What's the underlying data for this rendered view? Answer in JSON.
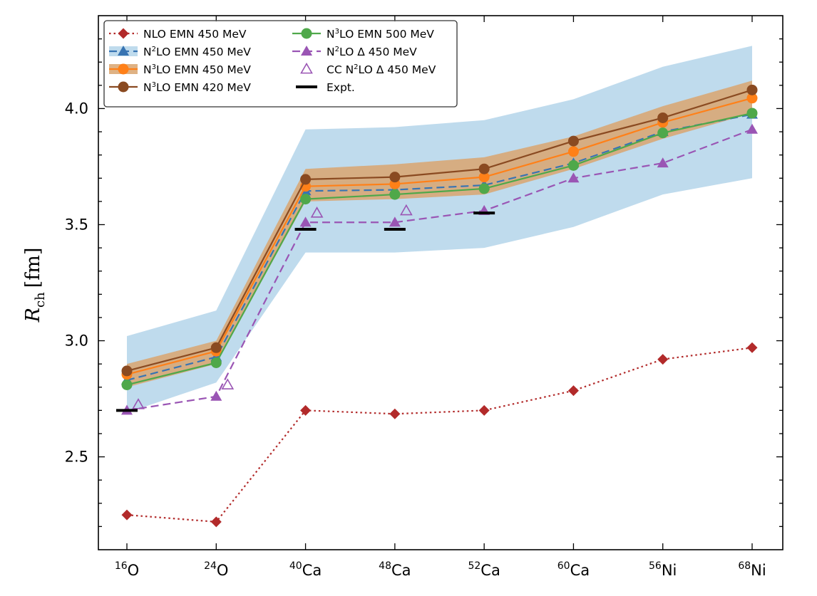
{
  "chart_data": {
    "type": "line",
    "title": "",
    "xlabel": "",
    "ylabel": {
      "symbol": "R",
      "subscript": "ch",
      "unit": "[fm]"
    },
    "ylim": [
      2.1,
      4.4
    ],
    "yticks": [
      2.5,
      3.0,
      3.5,
      4.0
    ],
    "grid": false,
    "legend_position": "top-left",
    "categories": [
      {
        "mass": "16",
        "element": "O"
      },
      {
        "mass": "24",
        "element": "O"
      },
      {
        "mass": "40",
        "element": "Ca"
      },
      {
        "mass": "48",
        "element": "Ca"
      },
      {
        "mass": "52",
        "element": "Ca"
      },
      {
        "mass": "60",
        "element": "Ca"
      },
      {
        "mass": "56",
        "element": "Ni"
      },
      {
        "mass": "68",
        "element": "Ni"
      }
    ],
    "bands": [
      {
        "name": "N2LO EMN 450 MeV band",
        "color": "#a6cde6",
        "opacity": 0.72,
        "lower": [
          2.69,
          2.82,
          3.38,
          3.38,
          3.4,
          3.49,
          3.63,
          3.7
        ],
        "upper": [
          3.02,
          3.13,
          3.91,
          3.92,
          3.95,
          4.04,
          4.18,
          4.27
        ]
      },
      {
        "name": "N3LO EMN 450 MeV band",
        "color": "#d9a46e",
        "opacity": 0.85,
        "lower": [
          2.8,
          2.9,
          3.6,
          3.61,
          3.63,
          3.74,
          3.87,
          3.98
        ],
        "upper": [
          2.9,
          3.0,
          3.74,
          3.76,
          3.79,
          3.88,
          4.01,
          4.12
        ]
      }
    ],
    "series": [
      {
        "name": "NLO EMN 450 MeV",
        "prefix": "NLO",
        "sup": "",
        "suffix": " EMN 450 MeV",
        "color": "#b22a2a",
        "line": "dotted",
        "marker": "diamond",
        "values": [
          2.25,
          2.22,
          2.7,
          2.685,
          2.7,
          2.785,
          2.92,
          2.97
        ]
      },
      {
        "name": "N2LO EMN 450 MeV",
        "prefix": "N",
        "sup": "2",
        "suffix": "LO EMN 450 MeV",
        "color": "#3874b2",
        "line": "dashed",
        "marker": "triangle",
        "values": [
          2.83,
          2.93,
          3.645,
          3.65,
          3.67,
          3.765,
          3.9,
          3.975
        ]
      },
      {
        "name": "N3LO EMN 450 MeV",
        "prefix": "N",
        "sup": "3",
        "suffix": "LO EMN 450 MeV",
        "color": "#ff8018",
        "line": "solid",
        "marker": "circle",
        "values": [
          2.855,
          2.955,
          3.665,
          3.675,
          3.705,
          3.815,
          3.94,
          4.045
        ]
      },
      {
        "name": "N3LO EMN 420 MeV",
        "prefix": "N",
        "sup": "3",
        "suffix": "LO EMN 420 MeV",
        "color": "#8a4a21",
        "line": "solid",
        "marker": "circle",
        "values": [
          2.87,
          2.97,
          3.695,
          3.705,
          3.74,
          3.86,
          3.96,
          4.08
        ]
      },
      {
        "name": "N3LO EMN 500 MeV",
        "prefix": "N",
        "sup": "3",
        "suffix": "LO EMN 500 MeV",
        "color": "#4fa84a",
        "line": "solid",
        "marker": "circle",
        "values": [
          2.81,
          2.905,
          3.61,
          3.63,
          3.655,
          3.755,
          3.895,
          3.98
        ]
      },
      {
        "name": "N2LO Δ 450 MeV",
        "prefix": "N",
        "sup": "2",
        "suffix": "LO Δ 450 MeV",
        "color": "#9a55b4",
        "line": "dashed",
        "marker": "triangle",
        "values": [
          2.7,
          2.76,
          3.51,
          3.51,
          3.56,
          3.7,
          3.765,
          3.91
        ]
      },
      {
        "name": "CC N2LO Δ 450 MeV",
        "prefix": "CC N",
        "sup": "2",
        "suffix": "LO Δ 450 MeV",
        "color": "#9a55b4",
        "line": "none",
        "marker": "triangle-open",
        "values": [
          2.725,
          2.81,
          3.55,
          3.56,
          null,
          null,
          null,
          null
        ]
      },
      {
        "name": "Expt.",
        "prefix": "Expt.",
        "sup": "",
        "suffix": "",
        "color": "#000000",
        "line": "none",
        "marker": "hbar",
        "values": [
          2.7,
          null,
          3.48,
          3.48,
          3.55,
          null,
          null,
          null
        ]
      }
    ],
    "legend_columns": [
      [
        "NLO EMN 450 MeV",
        "N2LO EMN 450 MeV",
        "N3LO EMN 450 MeV",
        "N3LO EMN 420 MeV"
      ],
      [
        "N3LO EMN 500 MeV",
        "N2LO Δ 450 MeV",
        "CC N2LO Δ 450 MeV",
        "Expt."
      ]
    ]
  }
}
